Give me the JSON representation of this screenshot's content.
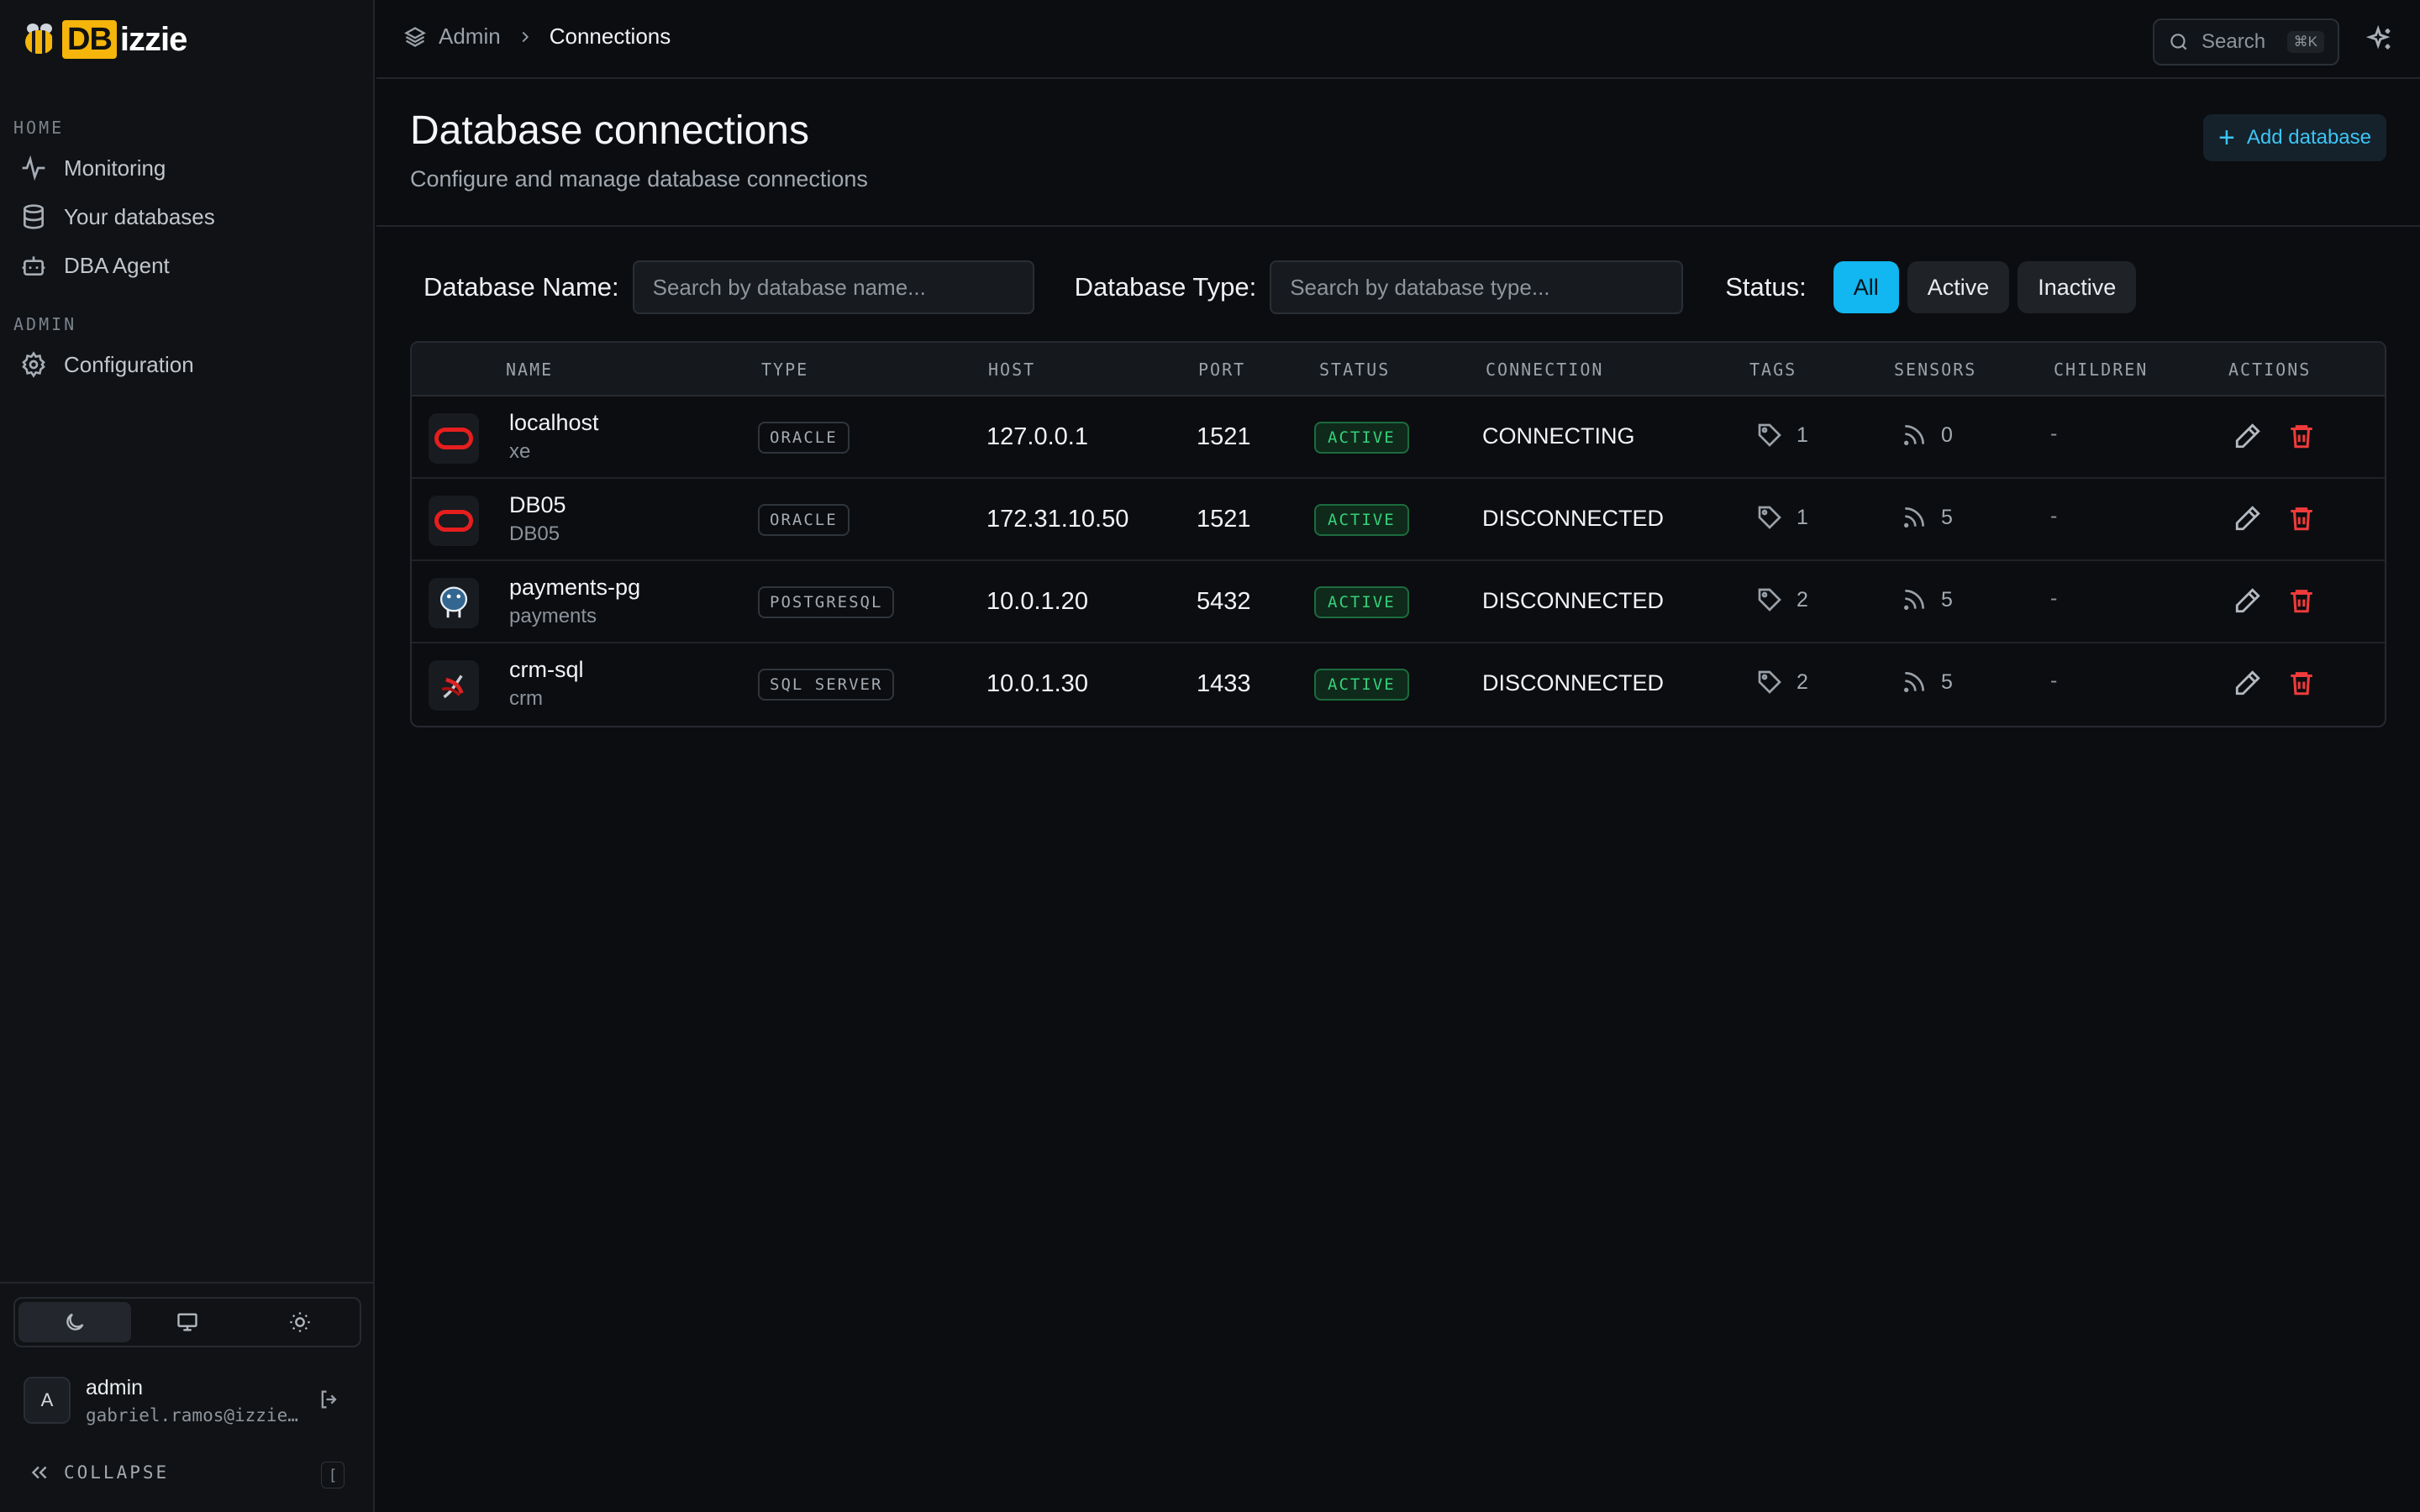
{
  "app": {
    "logo_db": "DB",
    "logo_rest": "izzie"
  },
  "sidebar": {
    "sections": [
      {
        "label": "HOME",
        "items": [
          {
            "label": "Monitoring",
            "icon": "activity-icon"
          },
          {
            "label": "Your databases",
            "icon": "database-icon"
          },
          {
            "label": "DBA Agent",
            "icon": "bot-icon"
          }
        ]
      },
      {
        "label": "ADMIN",
        "items": [
          {
            "label": "Configuration",
            "icon": "gear-icon"
          }
        ]
      }
    ],
    "theme": {
      "options": [
        "dark",
        "system",
        "light"
      ],
      "selected": "dark"
    },
    "user": {
      "initial": "A",
      "name": "admin",
      "email": "gabriel.ramos@izzie…"
    },
    "collapse_label": "COLLAPSE",
    "collapse_shortcut": "["
  },
  "topbar": {
    "breadcrumb": [
      "Admin",
      "Connections"
    ],
    "search": {
      "label": "Search",
      "shortcut": "⌘K"
    }
  },
  "header": {
    "title": "Database connections",
    "subtitle": "Configure and manage database connections",
    "add_button": "Add database"
  },
  "filters": {
    "name_label": "Database Name:",
    "name_placeholder": "Search by database name...",
    "type_label": "Database Type:",
    "type_placeholder": "Search by database type...",
    "status_label": "Status:",
    "status_options": [
      "All",
      "Active",
      "Inactive"
    ],
    "status_selected": "All"
  },
  "table": {
    "columns": [
      "NAME",
      "TYPE",
      "HOST",
      "PORT",
      "STATUS",
      "CONNECTION",
      "TAGS",
      "SENSORS",
      "CHILDREN",
      "ACTIONS"
    ],
    "rows": [
      {
        "name": "localhost",
        "db": "xe",
        "type": "ORACLE",
        "host": "127.0.0.1",
        "port": "1521",
        "status": "ACTIVE",
        "connection": "CONNECTING",
        "tags": "1",
        "sensors": "0",
        "children": "-",
        "icon": "oracle-icon"
      },
      {
        "name": "DB05",
        "db": "DB05",
        "type": "ORACLE",
        "host": "172.31.10.50",
        "port": "1521",
        "status": "ACTIVE",
        "connection": "DISCONNECTED",
        "tags": "1",
        "sensors": "5",
        "children": "-",
        "icon": "oracle-icon"
      },
      {
        "name": "payments-pg",
        "db": "payments",
        "type": "POSTGRESQL",
        "host": "10.0.1.20",
        "port": "5432",
        "status": "ACTIVE",
        "connection": "DISCONNECTED",
        "tags": "2",
        "sensors": "5",
        "children": "-",
        "icon": "postgresql-icon"
      },
      {
        "name": "crm-sql",
        "db": "crm",
        "type": "SQL SERVER",
        "host": "10.0.1.30",
        "port": "1433",
        "status": "ACTIVE",
        "connection": "DISCONNECTED",
        "tags": "2",
        "sensors": "5",
        "children": "-",
        "icon": "sqlserver-icon"
      }
    ]
  },
  "colors": {
    "accent": "#12b6f0",
    "active_green": "#35d17a",
    "danger": "#ef3b3b",
    "oracle_red": "#e61e1e",
    "logo_yellow": "#f5b50a"
  }
}
